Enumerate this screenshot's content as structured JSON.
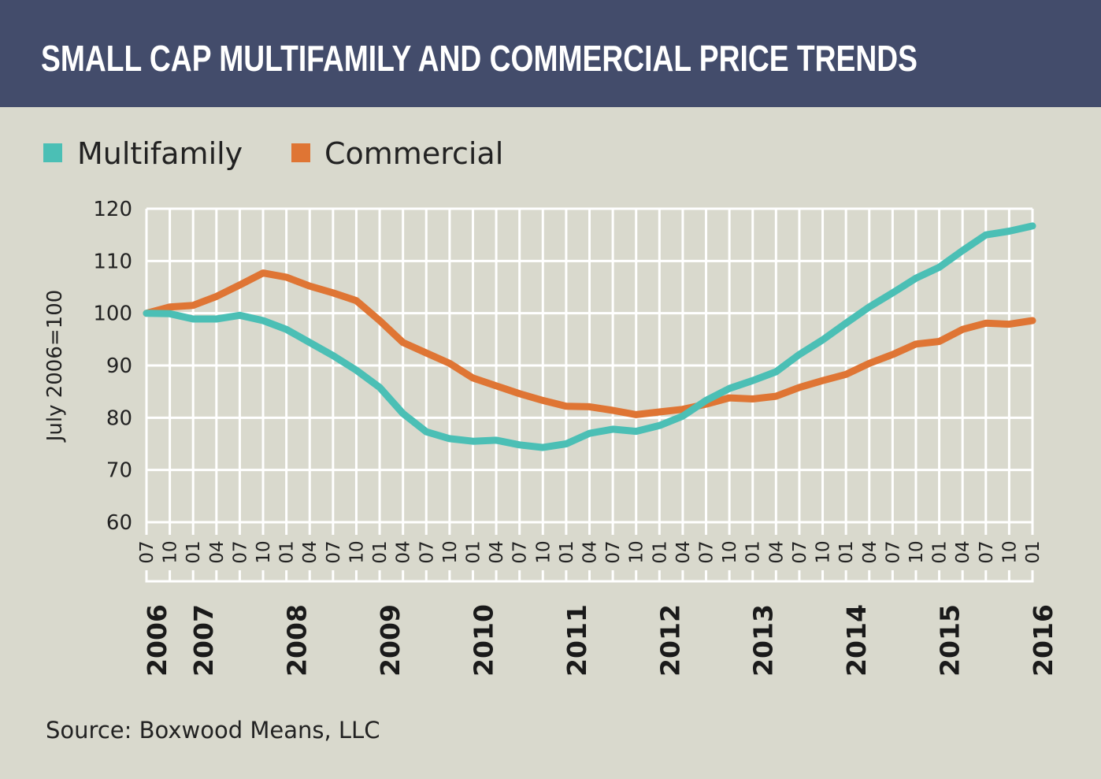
{
  "colors": {
    "header": "#434c6b",
    "background": "#d9d9cd",
    "grid": "#ffffff",
    "multifamily": "#4bbfb5",
    "commercial": "#df7534"
  },
  "chart_data": {
    "type": "line",
    "title": "SMALL CAP MULTIFAMILY AND COMMERCIAL PRICE TRENDS",
    "ylabel": "July 2006=100",
    "xlabel": "",
    "ylim": [
      60,
      120
    ],
    "yticks": [
      "60",
      "70",
      "80",
      "90",
      "100",
      "110",
      "120"
    ],
    "grid": true,
    "legend_position": "top-left",
    "x": [
      "2006-07",
      "2006-10",
      "2007-01",
      "2007-04",
      "2007-07",
      "2007-10",
      "2008-01",
      "2008-04",
      "2008-07",
      "2008-10",
      "2009-01",
      "2009-04",
      "2009-07",
      "2009-10",
      "2010-01",
      "2010-04",
      "2010-07",
      "2010-10",
      "2011-01",
      "2011-04",
      "2011-07",
      "2011-10",
      "2012-01",
      "2012-04",
      "2012-07",
      "2012-10",
      "2013-01",
      "2013-04",
      "2013-07",
      "2013-10",
      "2014-01",
      "2014-04",
      "2014-07",
      "2014-10",
      "2015-01",
      "2015-04",
      "2015-07",
      "2015-10",
      "2016-01"
    ],
    "xtick_labels": [
      "07",
      "10",
      "01",
      "04",
      "07",
      "10",
      "01",
      "04",
      "07",
      "10",
      "01",
      "04",
      "07",
      "10",
      "01",
      "04",
      "07",
      "10",
      "01",
      "04",
      "07",
      "10",
      "01",
      "04",
      "07",
      "10",
      "01",
      "04",
      "07",
      "10",
      "01",
      "04",
      "07",
      "10",
      "01",
      "04",
      "07",
      "10",
      "01"
    ],
    "year_labels": [
      {
        "label": "2006",
        "at": "2006-07"
      },
      {
        "label": "2007",
        "at": "2007-01"
      },
      {
        "label": "2008",
        "at": "2008-01"
      },
      {
        "label": "2009",
        "at": "2009-01"
      },
      {
        "label": "2010",
        "at": "2010-01"
      },
      {
        "label": "2011",
        "at": "2011-01"
      },
      {
        "label": "2012",
        "at": "2012-01"
      },
      {
        "label": "2013",
        "at": "2013-01"
      },
      {
        "label": "2014",
        "at": "2014-01"
      },
      {
        "label": "2015",
        "at": "2015-01"
      },
      {
        "label": "2016",
        "at": "2016-01"
      }
    ],
    "series": [
      {
        "name": "Multifamily",
        "values": [
          100,
          99.9,
          98.9,
          98.9,
          99.6,
          98.6,
          96.9,
          94.4,
          91.9,
          89.1,
          85.8,
          80.8,
          77.3,
          76.0,
          75.5,
          75.7,
          74.8,
          74.3,
          75.0,
          77.0,
          77.8,
          77.4,
          78.5,
          80.3,
          83.3,
          85.6,
          87.1,
          88.8,
          92.1,
          94.9,
          98.1,
          101.2,
          103.9,
          106.7,
          108.8,
          112.0,
          115.0,
          115.7,
          116.7
        ]
      },
      {
        "name": "Commercial",
        "values": [
          100,
          101.2,
          101.5,
          103.2,
          105.4,
          107.7,
          106.9,
          105.2,
          103.9,
          102.4,
          98.6,
          94.4,
          92.4,
          90.4,
          87.6,
          86.1,
          84.6,
          83.3,
          82.2,
          82.1,
          81.4,
          80.6,
          81.1,
          81.6,
          82.6,
          83.8,
          83.6,
          84.1,
          85.8,
          87.1,
          88.3,
          90.4,
          92.1,
          94.1,
          94.6,
          96.9,
          98.1,
          97.9,
          98.6
        ]
      }
    ],
    "source": "Source: Boxwood Means, LLC"
  }
}
